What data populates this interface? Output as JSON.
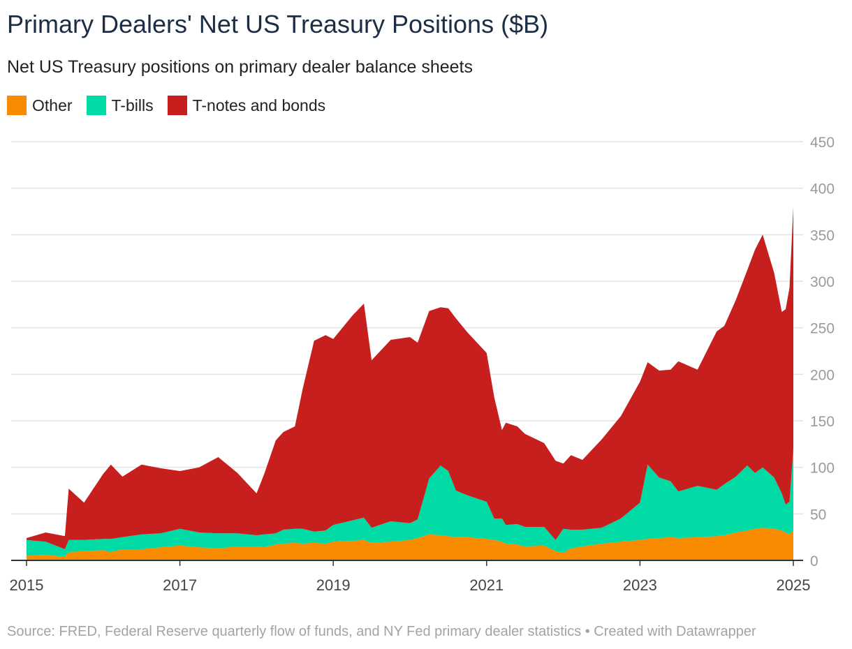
{
  "title": "Primary Dealers' Net US Treasury Positions ($B)",
  "subtitle": "Net US Treasury positions on primary dealer balance sheets",
  "footer": "Source: FRED, Federal Reserve quarterly flow of funds, and NY Fed primary dealer statistics • Created with Datawrapper",
  "colors": {
    "other": "#f88b00",
    "tbills": "#00dba6",
    "notes": "#c71e1e"
  },
  "legend": [
    {
      "label": "Other",
      "color": "#f88b00"
    },
    {
      "label": "T-bills",
      "color": "#00dba6"
    },
    {
      "label": "T-notes and bonds",
      "color": "#c71e1e"
    }
  ],
  "chart_data": {
    "type": "area",
    "stacked": true,
    "title": "Primary Dealers' Net US Treasury Positions ($B)",
    "subtitle": "Net US Treasury positions on primary dealer balance sheets",
    "xlabel": "",
    "ylabel": "",
    "xlim": [
      2015.0,
      2025.0
    ],
    "ylim": [
      0,
      450
    ],
    "yticks": [
      0,
      50,
      100,
      150,
      200,
      250,
      300,
      350,
      400,
      450
    ],
    "xticks": [
      "2015",
      "2017",
      "2019",
      "2021",
      "2023",
      "2025"
    ],
    "xtick_values": [
      2015,
      2017,
      2019,
      2021,
      2023,
      2025
    ],
    "grid": true,
    "legend_position": "top-left",
    "x": [
      2015.0,
      2015.25,
      2015.5,
      2015.55,
      2015.75,
      2016.0,
      2016.1,
      2016.25,
      2016.5,
      2016.75,
      2017.0,
      2017.25,
      2017.5,
      2017.75,
      2018.0,
      2018.1,
      2018.25,
      2018.35,
      2018.5,
      2018.6,
      2018.75,
      2018.9,
      2019.0,
      2019.25,
      2019.4,
      2019.5,
      2019.75,
      2020.0,
      2020.1,
      2020.25,
      2020.4,
      2020.5,
      2020.6,
      2020.75,
      2021.0,
      2021.1,
      2021.2,
      2021.25,
      2021.4,
      2021.5,
      2021.75,
      2021.9,
      2022.0,
      2022.1,
      2022.25,
      2022.5,
      2022.75,
      2023.0,
      2023.1,
      2023.25,
      2023.4,
      2023.5,
      2023.75,
      2024.0,
      2024.1,
      2024.25,
      2024.4,
      2024.5,
      2024.6,
      2024.75,
      2024.85,
      2024.9,
      2024.95,
      2025.0
    ],
    "series": [
      {
        "name": "Other",
        "values": [
          5,
          6,
          4,
          9,
          10,
          11,
          9,
          12,
          12,
          14,
          16,
          14,
          13,
          15,
          15,
          14,
          17,
          18,
          19,
          18,
          19,
          18,
          20,
          21,
          22,
          19,
          20,
          22,
          24,
          28,
          27,
          26,
          25,
          25,
          23,
          22,
          20,
          18,
          17,
          15,
          16,
          10,
          8,
          13,
          15,
          18,
          20,
          22,
          23,
          24,
          25,
          24,
          25,
          26,
          27,
          30,
          32,
          34,
          35,
          34,
          32,
          30,
          28,
          32
        ]
      },
      {
        "name": "T-bills",
        "values": [
          17,
          14,
          8,
          13,
          12,
          12,
          14,
          13,
          16,
          15,
          18,
          16,
          16,
          14,
          12,
          14,
          12,
          15,
          15,
          16,
          12,
          14,
          18,
          22,
          24,
          16,
          22,
          18,
          20,
          60,
          75,
          70,
          50,
          45,
          40,
          23,
          25,
          20,
          22,
          21,
          20,
          12,
          26,
          20,
          18,
          17,
          25,
          40,
          80,
          65,
          60,
          50,
          55,
          50,
          55,
          60,
          70,
          60,
          65,
          55,
          40,
          30,
          35,
          88
        ]
      },
      {
        "name": "T-notes and bonds",
        "values": [
          2,
          10,
          14,
          55,
          40,
          70,
          80,
          65,
          75,
          70,
          62,
          70,
          82,
          65,
          45,
          65,
          100,
          105,
          110,
          150,
          205,
          210,
          200,
          220,
          230,
          180,
          195,
          200,
          190,
          180,
          170,
          175,
          185,
          175,
          160,
          130,
          95,
          110,
          105,
          100,
          90,
          85,
          70,
          80,
          75,
          95,
          110,
          130,
          110,
          115,
          120,
          140,
          125,
          170,
          170,
          190,
          210,
          240,
          250,
          220,
          195,
          210,
          230,
          260
        ]
      }
    ]
  }
}
